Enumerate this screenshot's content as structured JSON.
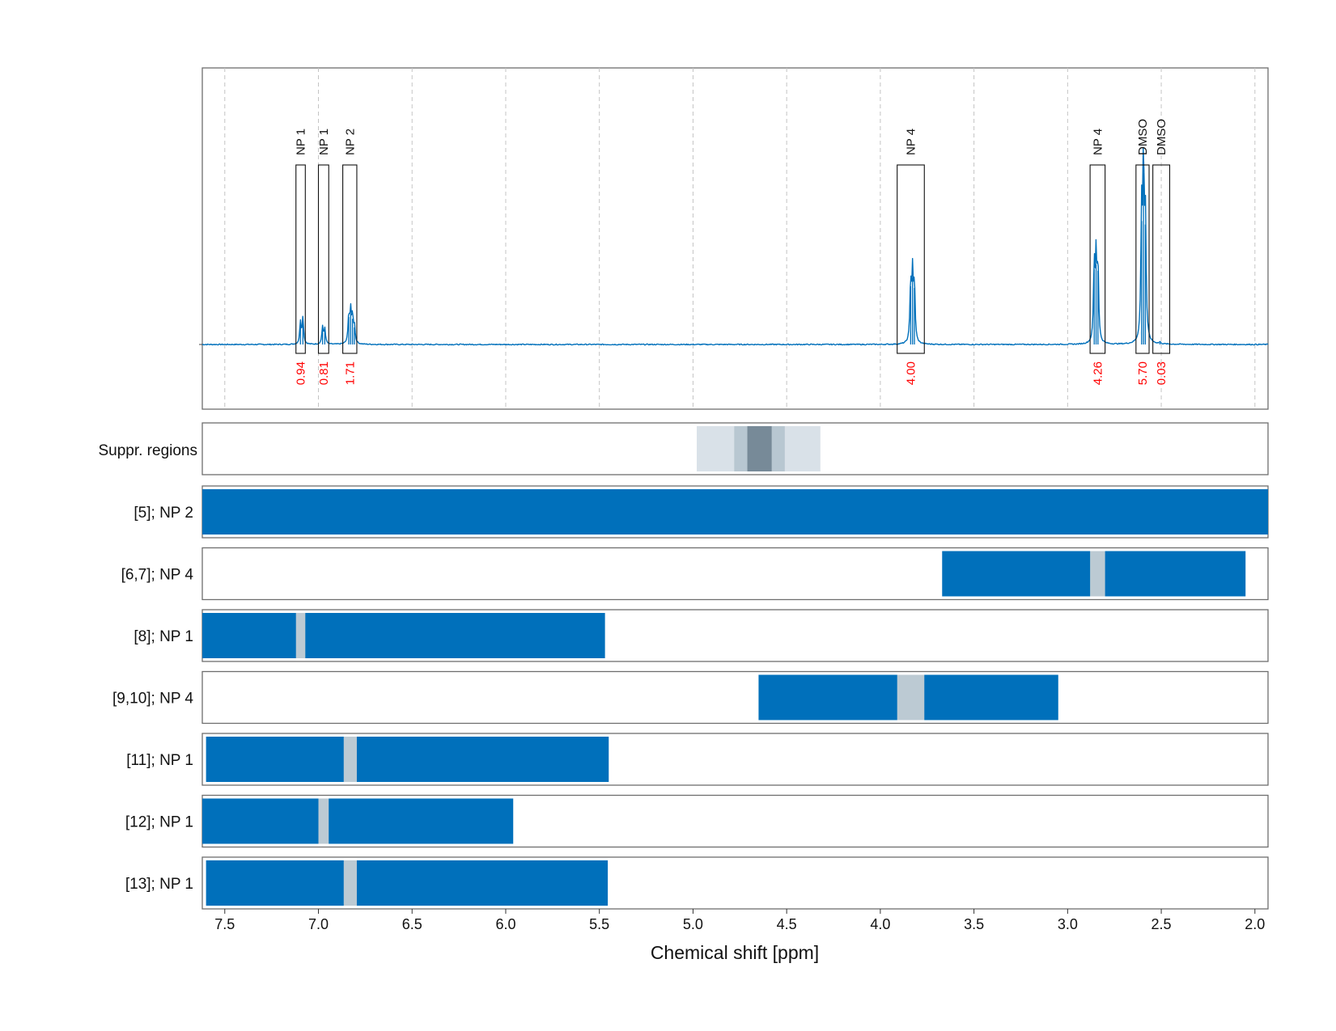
{
  "chart_data": {
    "type": "line",
    "title": "",
    "xlabel": "Chemical shift [ppm]",
    "ylabel": "",
    "x_axis_reversed": true,
    "xlim": [
      7.62,
      1.93
    ],
    "x_ticks": [
      7.5,
      7.0,
      6.5,
      6.0,
      5.5,
      5.0,
      4.5,
      4.0,
      3.5,
      3.0,
      2.5,
      2.0
    ],
    "x_tick_labels": [
      "7.5",
      "7.0",
      "6.5",
      "6.0",
      "5.5",
      "5.0",
      "4.5",
      "4.0",
      "3.5",
      "3.0",
      "2.5",
      "2.0"
    ],
    "grid": true,
    "colors": {
      "spectrum": "#0070bb",
      "bar": "#0070bb",
      "gap": "#bccad3",
      "integral": "#ff0000",
      "suppr_light": "#d9e1e8",
      "suppr_mid": "#b8c7d1",
      "suppr_dark": "#778a98"
    },
    "spectrum": {
      "series_name": "1H NMR spectrum",
      "baseline_ppm_range": [
        7.62,
        1.93
      ],
      "peaks": [
        {
          "ppm": 7.096,
          "height": 0.13
        },
        {
          "ppm": 7.083,
          "height": 0.15
        },
        {
          "ppm": 6.978,
          "height": 0.1
        },
        {
          "ppm": 6.966,
          "height": 0.09
        },
        {
          "ppm": 6.838,
          "height": 0.16
        },
        {
          "ppm": 6.828,
          "height": 0.18
        },
        {
          "ppm": 6.818,
          "height": 0.15
        },
        {
          "ppm": 6.808,
          "height": 0.1
        },
        {
          "ppm": 3.838,
          "height": 0.34
        },
        {
          "ppm": 3.828,
          "height": 0.39
        },
        {
          "ppm": 3.818,
          "height": 0.33
        },
        {
          "ppm": 2.858,
          "height": 0.44
        },
        {
          "ppm": 2.848,
          "height": 0.47
        },
        {
          "ppm": 2.838,
          "height": 0.43
        },
        {
          "ppm": 2.605,
          "height": 0.72
        },
        {
          "ppm": 2.595,
          "height": 1.0
        },
        {
          "ppm": 2.585,
          "height": 0.7
        },
        {
          "ppm": 2.507,
          "height": 0.01
        }
      ]
    },
    "annotations": [
      {
        "label": "NP 1",
        "range_ppm": [
          7.12,
          7.07
        ],
        "box_height": 1.0,
        "integral": "0.94"
      },
      {
        "label": "NP 1",
        "range_ppm": [
          7.0,
          6.945
        ],
        "box_height": 1.0,
        "integral": "0.81"
      },
      {
        "label": "NP 2",
        "range_ppm": [
          6.87,
          6.795
        ],
        "box_height": 1.0,
        "integral": "1.71"
      },
      {
        "label": "NP 4",
        "range_ppm": [
          3.91,
          3.765
        ],
        "box_height": 1.0,
        "integral": "4.00"
      },
      {
        "label": "NP 4",
        "range_ppm": [
          2.88,
          2.8
        ],
        "box_height": 1.0,
        "integral": "4.26"
      },
      {
        "label": "DMSO",
        "range_ppm": [
          2.635,
          2.565
        ],
        "box_height": 1.0,
        "integral": "5.70"
      },
      {
        "label": "DMSO",
        "range_ppm": [
          2.545,
          2.455
        ],
        "box_height": 1.0,
        "integral": "0.03"
      }
    ],
    "suppression_regions": {
      "label": "Suppr. regions",
      "bands": [
        {
          "range_ppm": [
            4.98,
            4.32
          ],
          "shade": "light"
        },
        {
          "range_ppm": [
            4.78,
            4.51
          ],
          "shade": "mid"
        },
        {
          "range_ppm": [
            4.71,
            4.58
          ],
          "shade": "dark"
        }
      ]
    },
    "tracks": [
      {
        "label": "[5]; NP 2",
        "range_ppm": [
          7.62,
          1.93
        ],
        "gap_ppm": null
      },
      {
        "label": "[6,7]; NP 4",
        "range_ppm": [
          3.67,
          2.05
        ],
        "gap_ppm": [
          2.88,
          2.8
        ]
      },
      {
        "label": "[8]; NP 1",
        "range_ppm": [
          7.62,
          5.47
        ],
        "gap_ppm": [
          7.12,
          7.07
        ]
      },
      {
        "label": "[9,10]; NP 4",
        "range_ppm": [
          4.65,
          3.05
        ],
        "gap_ppm": [
          3.91,
          3.765
        ]
      },
      {
        "label": "[11]; NP 1",
        "range_ppm": [
          7.6,
          5.45
        ],
        "gap_ppm": [
          6.865,
          6.795
        ]
      },
      {
        "label": "[12]; NP 1",
        "range_ppm": [
          7.62,
          5.96
        ],
        "gap_ppm": [
          7.0,
          6.945
        ]
      },
      {
        "label": "[13]; NP 1",
        "range_ppm": [
          7.6,
          5.455
        ],
        "gap_ppm": [
          6.865,
          6.795
        ]
      }
    ]
  }
}
